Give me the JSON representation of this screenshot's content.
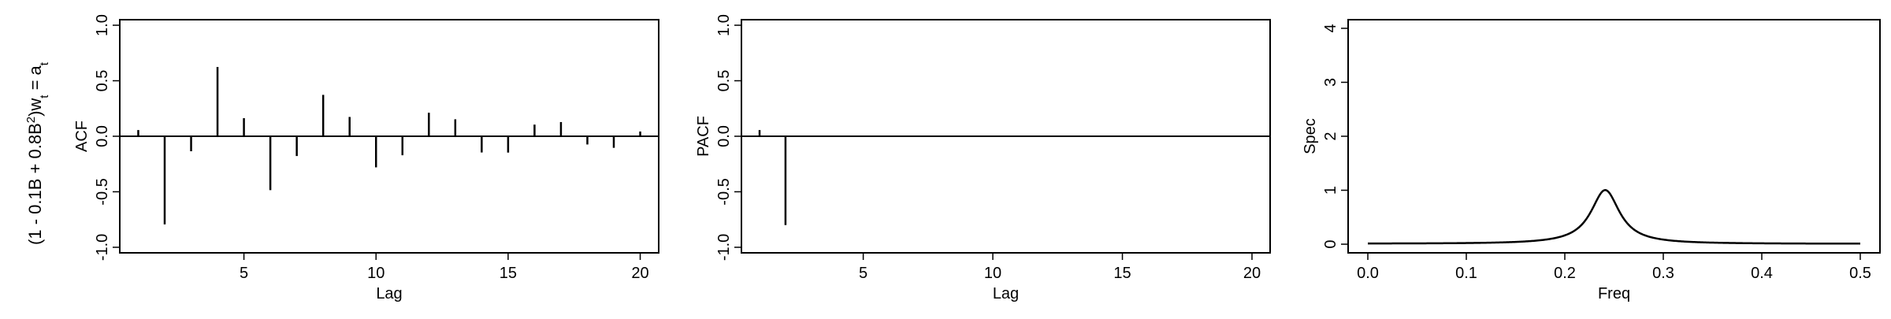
{
  "row_label": {
    "prefix": "(1 - 0.1B + 0.8B",
    "sup": "2",
    "mid": ")w",
    "sub": "t",
    "eq": " = a",
    "sub2": "t"
  },
  "chart_data": [
    {
      "type": "bar",
      "subtype": "acf",
      "title": "",
      "xlabel": "Lag",
      "ylabel": "ACF",
      "xlim": [
        0.3,
        20.7
      ],
      "ylim": [
        -1.05,
        1.05
      ],
      "xticks": [
        5,
        10,
        15,
        20
      ],
      "yticks": [
        -1.0,
        -0.5,
        0.0,
        0.5,
        1.0
      ],
      "ytick_labels": [
        "-1.0",
        "-0.5",
        "0.0",
        "0.5",
        "1.0"
      ],
      "zero_line": true,
      "x": [
        1,
        2,
        3,
        4,
        5,
        6,
        7,
        8,
        9,
        10,
        11,
        12,
        13,
        14,
        15,
        16,
        17,
        18,
        19,
        20
      ],
      "values": [
        0.056,
        -0.794,
        -0.135,
        0.624,
        0.163,
        -0.485,
        -0.178,
        0.373,
        0.174,
        -0.28,
        -0.171,
        0.212,
        0.153,
        -0.146,
        -0.147,
        0.105,
        0.128,
        -0.074,
        -0.104,
        0.043
      ]
    },
    {
      "type": "bar",
      "subtype": "pacf",
      "title": "",
      "xlabel": "Lag",
      "ylabel": "PACF",
      "xlim": [
        0.3,
        20.7
      ],
      "ylim": [
        -1.05,
        1.05
      ],
      "xticks": [
        5,
        10,
        15,
        20
      ],
      "yticks": [
        -1.0,
        -0.5,
        0.0,
        0.5,
        1.0
      ],
      "ytick_labels": [
        "-1.0",
        "-0.5",
        "0.0",
        "0.5",
        "1.0"
      ],
      "zero_line": true,
      "x": [
        1,
        2
      ],
      "values": [
        0.056,
        -0.8
      ]
    },
    {
      "type": "line",
      "subtype": "spectrum",
      "title": "",
      "xlabel": "Freq",
      "ylabel": "Spec",
      "xlim": [
        -0.02,
        0.52
      ],
      "ylim": [
        -0.16,
        4.16
      ],
      "xticks": [
        0.0,
        0.1,
        0.2,
        0.3,
        0.4,
        0.5
      ],
      "xtick_labels": [
        "0.0",
        "0.1",
        "0.2",
        "0.3",
        "0.4",
        "0.5"
      ],
      "yticks": [
        0,
        1,
        2,
        3,
        4
      ],
      "ytick_labels": [
        "0",
        "1",
        "2",
        "3",
        "4"
      ],
      "spectrum_model": {
        "ar": [
          0.1,
          -0.8
        ],
        "sigma2": 1
      }
    }
  ]
}
